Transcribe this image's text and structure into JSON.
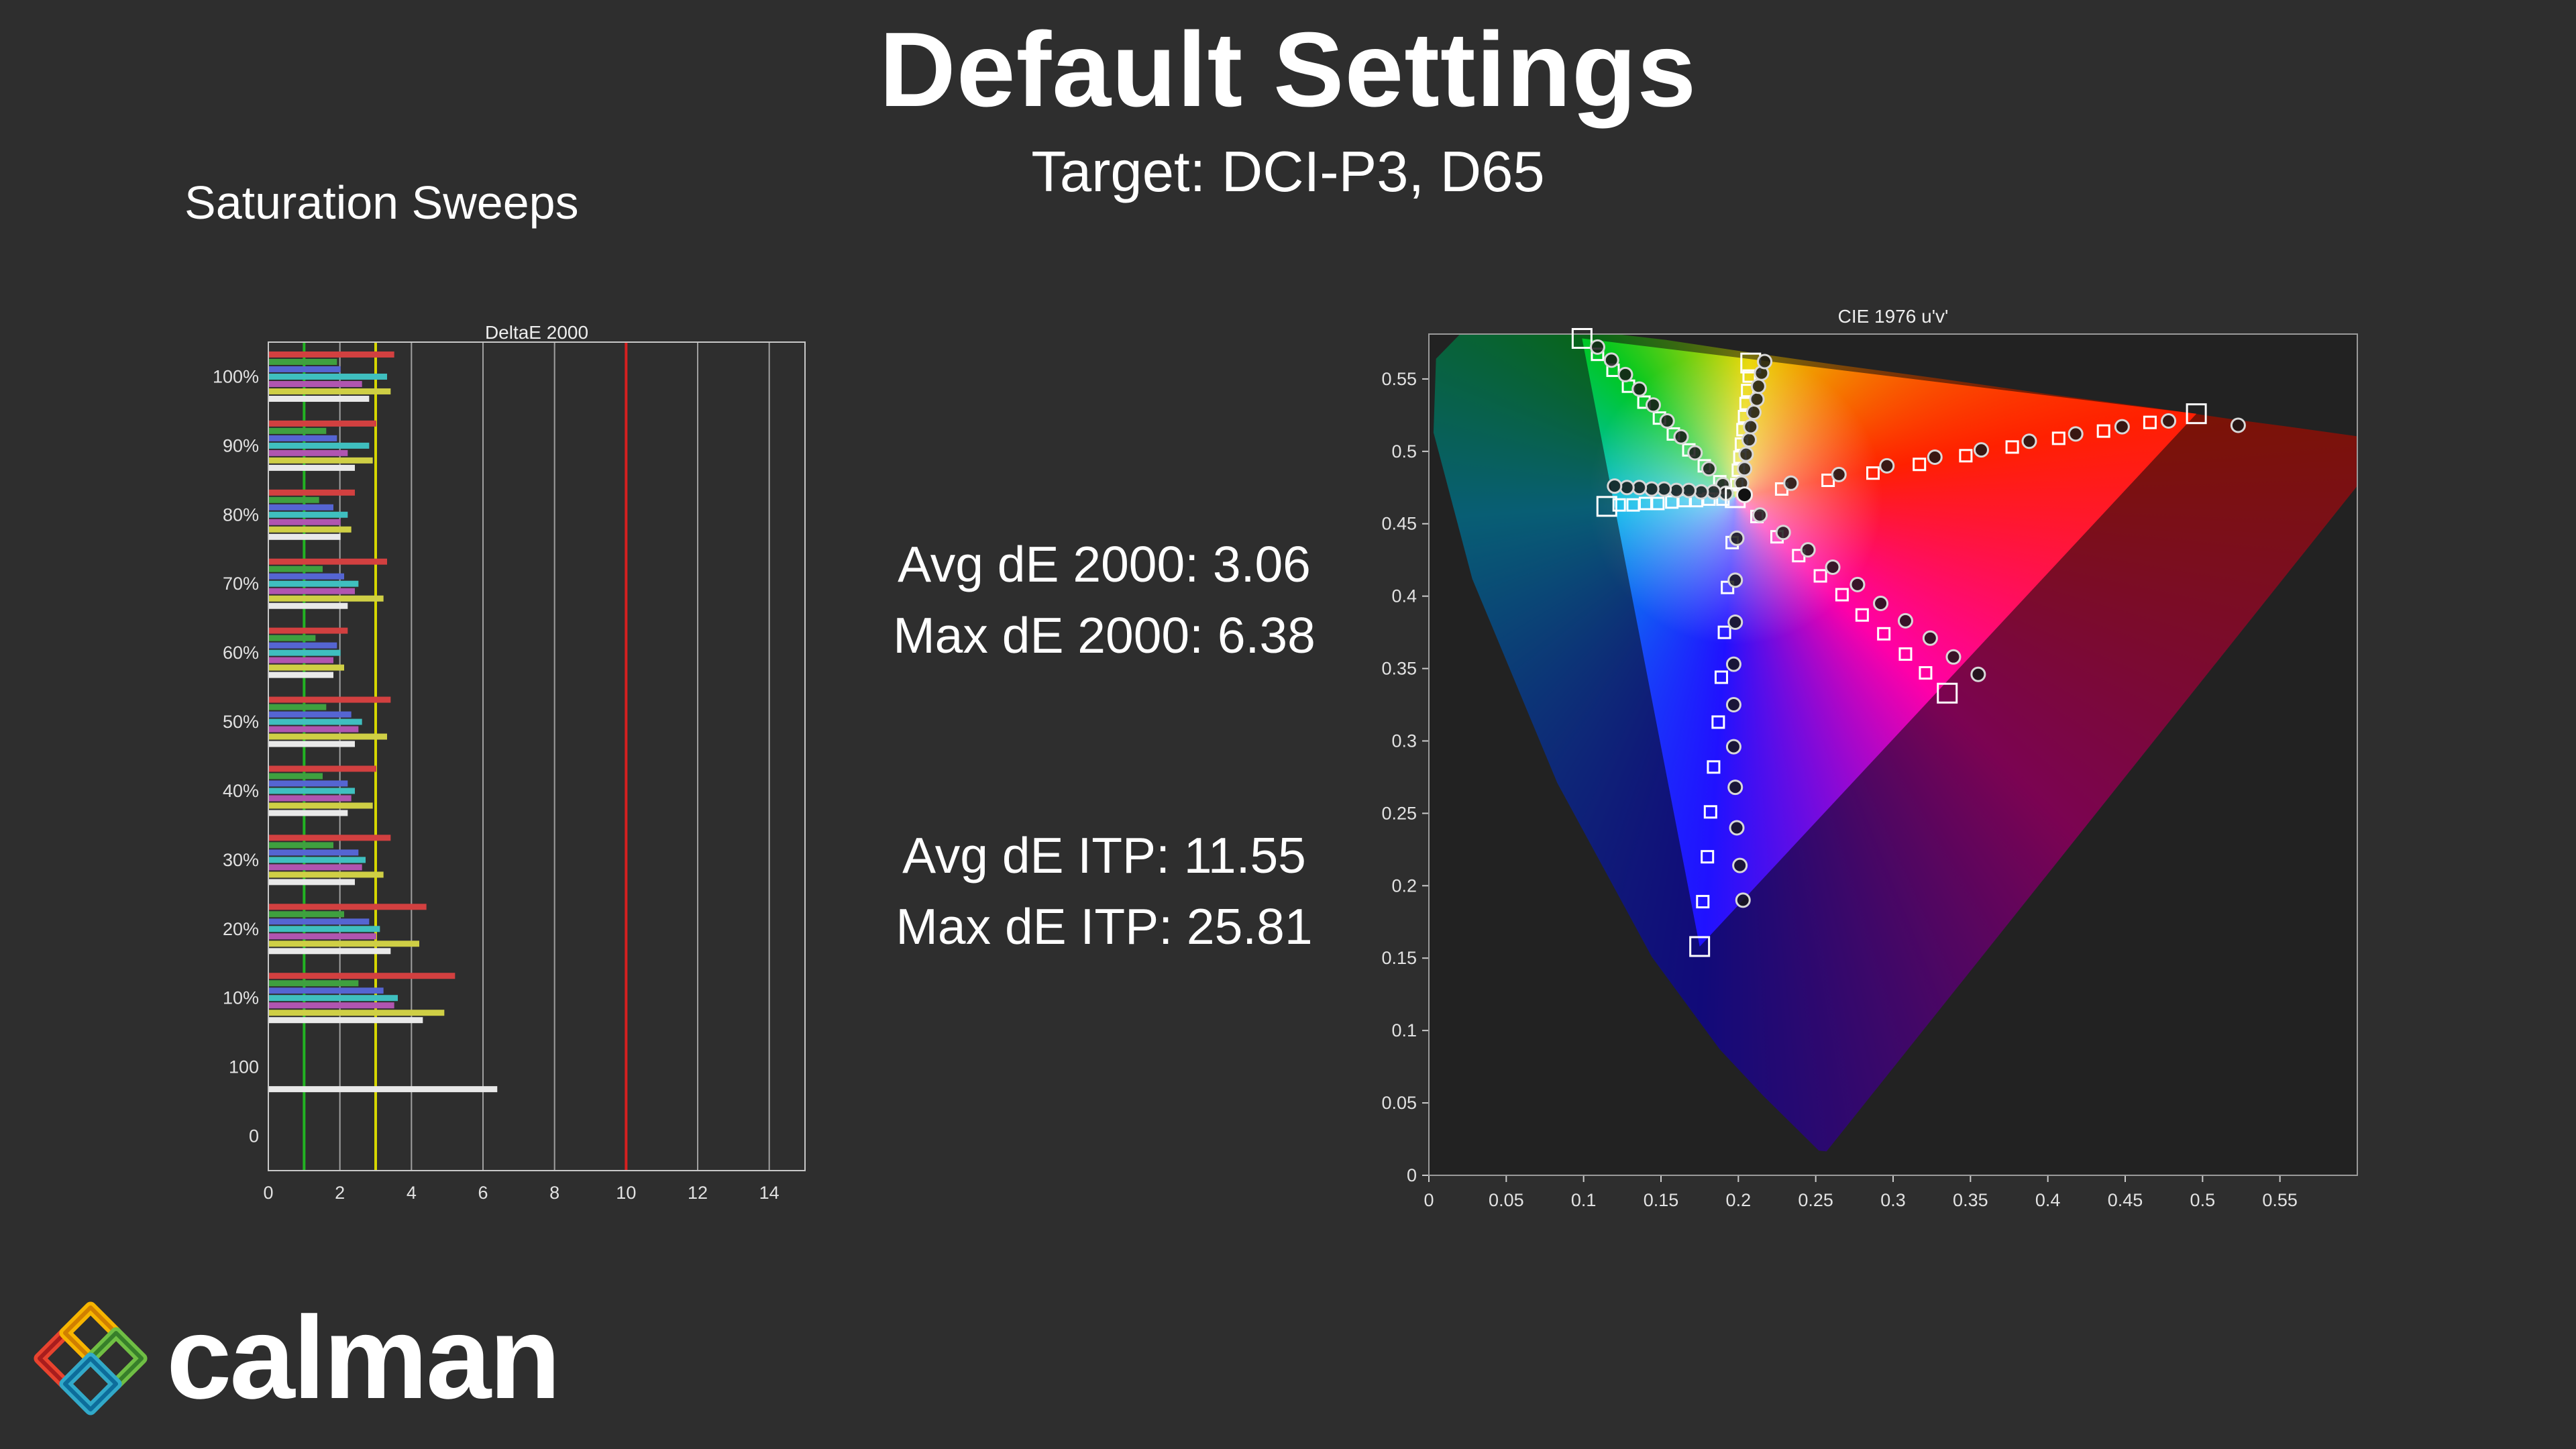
{
  "header": {
    "title": "Default Settings",
    "subtitle": "Target: DCI-P3, D65"
  },
  "section_label": "Saturation Sweeps",
  "stats": {
    "avg_de2000": "Avg dE 2000: 3.06",
    "max_de2000": "Max dE 2000: 6.38",
    "avg_deitp": "Avg dE ITP: 11.55",
    "max_deitp": "Max dE ITP: 25.81"
  },
  "logo": {
    "brand": "calman"
  },
  "chart_data": [
    {
      "type": "bar",
      "title": "DeltaE 2000",
      "orientation": "horizontal",
      "xlim": [
        0,
        15
      ],
      "xticks": [
        0,
        2,
        4,
        6,
        8,
        10,
        12,
        14
      ],
      "grid_color": "#a0a0a0",
      "reference_lines": [
        {
          "x": 1,
          "color": "#22b322",
          "meaning": "dE 1"
        },
        {
          "x": 3,
          "color": "#d6d600",
          "meaning": "dE 3"
        },
        {
          "x": 10,
          "color": "#d62020",
          "meaning": "dE 10"
        }
      ],
      "categories": [
        "100%",
        "90%",
        "80%",
        "70%",
        "60%",
        "50%",
        "40%",
        "30%",
        "20%",
        "10%",
        "100",
        "0"
      ],
      "series": [
        {
          "name": "Red",
          "color": "#d24040",
          "values": [
            3.5,
            3.0,
            2.4,
            3.3,
            2.2,
            3.4,
            3.0,
            3.4,
            4.4,
            5.2,
            0,
            0
          ]
        },
        {
          "name": "Green",
          "color": "#3fa03f",
          "values": [
            1.9,
            1.6,
            1.4,
            1.5,
            1.3,
            1.6,
            1.5,
            1.8,
            2.1,
            2.5,
            0,
            0
          ]
        },
        {
          "name": "Blue",
          "color": "#5565d2",
          "values": [
            2.0,
            1.9,
            1.8,
            2.1,
            1.9,
            2.3,
            2.2,
            2.5,
            2.8,
            3.2,
            0,
            0
          ]
        },
        {
          "name": "Cyan",
          "color": "#3fbfbf",
          "values": [
            3.3,
            2.8,
            2.2,
            2.5,
            2.0,
            2.6,
            2.4,
            2.7,
            3.1,
            3.6,
            0,
            0
          ]
        },
        {
          "name": "Magenta",
          "color": "#b055b0",
          "values": [
            2.6,
            2.2,
            2.0,
            2.4,
            1.8,
            2.5,
            2.3,
            2.6,
            3.0,
            3.5,
            0,
            0
          ]
        },
        {
          "name": "Yellow",
          "color": "#cfcf45",
          "values": [
            3.4,
            2.9,
            2.3,
            3.2,
            2.1,
            3.3,
            2.9,
            3.2,
            4.2,
            4.9,
            0,
            0
          ]
        },
        {
          "name": "White",
          "color": "#e9e9e9",
          "values": [
            2.8,
            2.4,
            2.0,
            2.2,
            1.8,
            2.4,
            2.2,
            2.4,
            3.4,
            4.3,
            6.38,
            0
          ]
        }
      ]
    },
    {
      "type": "scatter",
      "title": "CIE 1976 u'v'",
      "xlim": [
        0,
        0.6
      ],
      "ylim": [
        0,
        0.581
      ],
      "xtick_values": [
        0,
        0.05,
        0.1,
        0.15,
        0.2,
        0.25,
        0.3,
        0.35,
        0.4,
        0.45,
        0.5,
        0.55
      ],
      "xtick_labels": [
        "0",
        "0.05",
        "0.1",
        "0.15",
        "0.2",
        "0.25",
        "0.3",
        "0.35",
        "0.4",
        "0.45",
        "0.5",
        "0.55"
      ],
      "ytick_values": [
        0,
        0.05,
        0.1,
        0.15,
        0.2,
        0.25,
        0.3,
        0.35,
        0.4,
        0.45,
        0.5,
        0.55
      ],
      "ytick_labels": [
        "0",
        "0.05",
        "0.1",
        "0.15",
        "0.2",
        "0.25",
        "0.3",
        "0.35",
        "0.4",
        "0.45",
        "0.5",
        "0.55"
      ],
      "white_point": {
        "target": [
          0.198,
          0.468
        ],
        "measured": [
          0.204,
          0.47
        ]
      },
      "gamut_triangle": {
        "name": "DCI-P3",
        "red": [
          0.496,
          0.526
        ],
        "green": [
          0.099,
          0.578
        ],
        "blue": [
          0.175,
          0.158
        ]
      },
      "spectral_locus": [
        [
          0.028,
          0.412
        ],
        [
          0.003,
          0.513
        ],
        [
          0.0046,
          0.564
        ],
        [
          0.023,
          0.584
        ],
        [
          0.05,
          0.587
        ],
        [
          0.079,
          0.586
        ],
        [
          0.113,
          0.582
        ],
        [
          0.153,
          0.577
        ],
        [
          0.203,
          0.569
        ],
        [
          0.262,
          0.56
        ],
        [
          0.332,
          0.55
        ],
        [
          0.404,
          0.539
        ],
        [
          0.469,
          0.53
        ],
        [
          0.52,
          0.522
        ],
        [
          0.556,
          0.517
        ],
        [
          0.623,
          0.507
        ],
        [
          0.257,
          0.0165
        ],
        [
          0.252,
          0.017
        ],
        [
          0.235,
          0.035
        ],
        [
          0.216,
          0.055
        ],
        [
          0.188,
          0.087
        ],
        [
          0.144,
          0.151
        ],
        [
          0.083,
          0.271
        ]
      ],
      "sweeps": [
        {
          "name": "red",
          "targets": [
            [
              0.228,
              0.474
            ],
            [
              0.258,
              0.48
            ],
            [
              0.287,
              0.485
            ],
            [
              0.317,
              0.491
            ],
            [
              0.347,
              0.497
            ],
            [
              0.377,
              0.503
            ],
            [
              0.407,
              0.509
            ],
            [
              0.436,
              0.514
            ],
            [
              0.466,
              0.52
            ],
            [
              0.496,
              0.526
            ]
          ],
          "measured": [
            [
              0.234,
              0.478
            ],
            [
              0.265,
              0.484
            ],
            [
              0.296,
              0.49
            ],
            [
              0.327,
              0.496
            ],
            [
              0.357,
              0.501
            ],
            [
              0.388,
              0.507
            ],
            [
              0.418,
              0.512
            ],
            [
              0.448,
              0.517
            ],
            [
              0.478,
              0.521
            ],
            [
              0.523,
              0.518
            ]
          ]
        },
        {
          "name": "green",
          "targets": [
            [
              0.188,
              0.479
            ],
            [
              0.178,
              0.49
            ],
            [
              0.168,
              0.501
            ],
            [
              0.158,
              0.512
            ],
            [
              0.149,
              0.523
            ],
            [
              0.139,
              0.534
            ],
            [
              0.129,
              0.545
            ],
            [
              0.119,
              0.556
            ],
            [
              0.109,
              0.567
            ],
            [
              0.099,
              0.578
            ]
          ],
          "measured": [
            [
              0.19,
              0.477
            ],
            [
              0.181,
              0.488
            ],
            [
              0.172,
              0.499
            ],
            [
              0.163,
              0.51
            ],
            [
              0.154,
              0.521
            ],
            [
              0.145,
              0.532
            ],
            [
              0.136,
              0.543
            ],
            [
              0.127,
              0.553
            ],
            [
              0.118,
              0.563
            ],
            [
              0.109,
              0.572
            ]
          ]
        },
        {
          "name": "blue",
          "targets": [
            [
              0.196,
              0.437
            ],
            [
              0.193,
              0.406
            ],
            [
              0.191,
              0.375
            ],
            [
              0.189,
              0.344
            ],
            [
              0.187,
              0.313
            ],
            [
              0.184,
              0.282
            ],
            [
              0.182,
              0.251
            ],
            [
              0.18,
              0.22
            ],
            [
              0.177,
              0.189
            ],
            [
              0.175,
              0.158
            ]
          ],
          "measured": [
            [
              0.199,
              0.44
            ],
            [
              0.198,
              0.411
            ],
            [
              0.198,
              0.382
            ],
            [
              0.197,
              0.353
            ],
            [
              0.197,
              0.325
            ],
            [
              0.197,
              0.296
            ],
            [
              0.198,
              0.268
            ],
            [
              0.199,
              0.24
            ],
            [
              0.201,
              0.214
            ],
            [
              0.203,
              0.19
            ]
          ]
        },
        {
          "name": "cyan",
          "targets": [
            [
              0.19,
              0.467
            ],
            [
              0.181,
              0.467
            ],
            [
              0.173,
              0.466
            ],
            [
              0.165,
              0.466
            ],
            [
              0.157,
              0.465
            ],
            [
              0.148,
              0.464
            ],
            [
              0.14,
              0.464
            ],
            [
              0.132,
              0.463
            ],
            [
              0.123,
              0.463
            ],
            [
              0.115,
              0.462
            ]
          ],
          "measured": [
            [
              0.192,
              0.471
            ],
            [
              0.184,
              0.472
            ],
            [
              0.176,
              0.472
            ],
            [
              0.168,
              0.473
            ],
            [
              0.16,
              0.473
            ],
            [
              0.152,
              0.474
            ],
            [
              0.144,
              0.474
            ],
            [
              0.136,
              0.475
            ],
            [
              0.128,
              0.475
            ],
            [
              0.12,
              0.476
            ]
          ]
        },
        {
          "name": "magenta",
          "targets": [
            [
              0.212,
              0.455
            ],
            [
              0.225,
              0.441
            ],
            [
              0.239,
              0.428
            ],
            [
              0.253,
              0.414
            ],
            [
              0.267,
              0.401
            ],
            [
              0.28,
              0.387
            ],
            [
              0.294,
              0.374
            ],
            [
              0.308,
              0.36
            ],
            [
              0.321,
              0.347
            ],
            [
              0.335,
              0.333
            ]
          ],
          "measured": [
            [
              0.214,
              0.456
            ],
            [
              0.229,
              0.444
            ],
            [
              0.245,
              0.432
            ],
            [
              0.261,
              0.42
            ],
            [
              0.277,
              0.408
            ],
            [
              0.292,
              0.395
            ],
            [
              0.308,
              0.383
            ],
            [
              0.324,
              0.371
            ],
            [
              0.339,
              0.358
            ],
            [
              0.355,
              0.346
            ]
          ]
        },
        {
          "name": "yellow",
          "targets": [
            [
              0.199,
              0.477
            ],
            [
              0.2,
              0.487
            ],
            [
              0.201,
              0.496
            ],
            [
              0.202,
              0.505
            ],
            [
              0.203,
              0.515
            ],
            [
              0.204,
              0.524
            ],
            [
              0.205,
              0.533
            ],
            [
              0.206,
              0.542
            ],
            [
              0.207,
              0.552
            ],
            [
              0.208,
              0.561
            ]
          ],
          "measured": [
            [
              0.202,
              0.478
            ],
            [
              0.204,
              0.488
            ],
            [
              0.205,
              0.498
            ],
            [
              0.207,
              0.508
            ],
            [
              0.208,
              0.517
            ],
            [
              0.21,
              0.527
            ],
            [
              0.212,
              0.536
            ],
            [
              0.213,
              0.545
            ],
            [
              0.215,
              0.554
            ],
            [
              0.217,
              0.562
            ]
          ]
        }
      ]
    }
  ]
}
